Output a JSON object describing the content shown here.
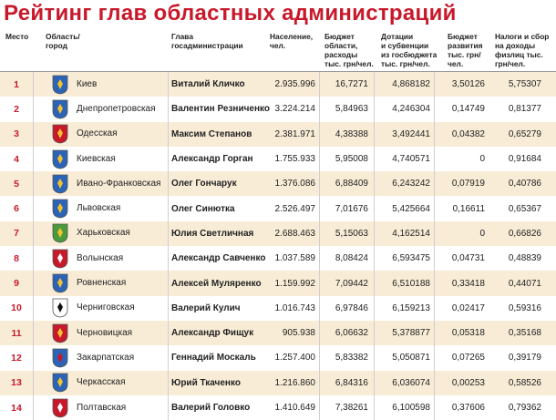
{
  "title": "Рейтинг глав областных администраций",
  "headers": {
    "rank": "Место",
    "region_l1": "Область/",
    "region_l2": "город",
    "gov_l1": "Глава",
    "gov_l2": "госадминистрации",
    "pop_l1": "Население,",
    "pop_l2": "чел.",
    "bud_l1": "Бюджет",
    "bud_l2": "области,",
    "bud_l3": "расходы",
    "bud_l4": "тыс. грн/чел.",
    "sub_l1": "Дотации",
    "sub_l2": "и субвенции",
    "sub_l3": "из госбюджета",
    "sub_l4": "тыс. грн/чел.",
    "dev_l1": "Бюджет",
    "dev_l2": "развития",
    "dev_l3": "тыс. грн/",
    "dev_l4": "чел.",
    "tax_l1": "Налоги и сбор",
    "tax_l2": "на доходы",
    "tax_l3": "физлиц тыс.",
    "tax_l4": "грн/чел."
  },
  "rows": [
    {
      "rank": "1",
      "region": "Киев",
      "governor": "Виталий Кличко",
      "population": "2.935.996",
      "budget": "16,7271",
      "subsidies": "4,868182",
      "development": "3,50126",
      "taxes": "5,75307",
      "emblem": "kyiv-city-emblem",
      "color": "#2b64b6",
      "accent": "#f2c12e"
    },
    {
      "rank": "2",
      "region": "Днепропетровская",
      "governor": "Валентин Резниченко",
      "population": "3.224.214",
      "budget": "5,84963",
      "subsidies": "4,246304",
      "development": "0,14749",
      "taxes": "0,81377",
      "emblem": "dnipro-emblem",
      "color": "#2b64b6",
      "accent": "#f2c12e"
    },
    {
      "rank": "3",
      "region": "Одесская",
      "governor": "Максим Степанов",
      "population": "2.381.971",
      "budget": "4,38388",
      "subsidies": "3,492441",
      "development": "0,04382",
      "taxes": "0,65279",
      "emblem": "odesa-emblem",
      "color": "#c8192b",
      "accent": "#f2c12e"
    },
    {
      "rank": "4",
      "region": "Киевская",
      "governor": "Александр Горган",
      "population": "1.755.933",
      "budget": "5,95008",
      "subsidies": "4,740571",
      "development": "0",
      "taxes": "0,91684",
      "emblem": "kyiv-oblast-emblem",
      "color": "#2b64b6",
      "accent": "#f2c12e"
    },
    {
      "rank": "5",
      "region": "Ивано-Франковская",
      "governor": "Олег Гончарук",
      "population": "1.376.086",
      "budget": "6,88409",
      "subsidies": "6,243242",
      "development": "0,07919",
      "taxes": "0,40786",
      "emblem": "ivano-frankivsk-emblem",
      "color": "#2b64b6",
      "accent": "#f2c12e"
    },
    {
      "rank": "6",
      "region": "Львовская",
      "governor": "Олег Синютка",
      "population": "2.526.497",
      "budget": "7,01676",
      "subsidies": "5,425664",
      "development": "0,16611",
      "taxes": "0,65367",
      "emblem": "lviv-emblem",
      "color": "#2b64b6",
      "accent": "#f2c12e"
    },
    {
      "rank": "7",
      "region": "Харьковская",
      "governor": "Юлия Светличная",
      "population": "2.688.463",
      "budget": "5,15063",
      "subsidies": "4,162514",
      "development": "0",
      "taxes": "0,66826",
      "emblem": "kharkiv-emblem",
      "color": "#4a9a3c",
      "accent": "#f2c12e"
    },
    {
      "rank": "8",
      "region": "Волынская",
      "governor": "Александр Савченко",
      "population": "1.037.589",
      "budget": "8,08424",
      "subsidies": "6,593475",
      "development": "0,04731",
      "taxes": "0,48839",
      "emblem": "volyn-emblem",
      "color": "#c8192b",
      "accent": "#ffffff"
    },
    {
      "rank": "9",
      "region": "Ровненская",
      "governor": "Алексей Муляренко",
      "population": "1.159.992",
      "budget": "7,09442",
      "subsidies": "6,510188",
      "development": "0,33418",
      "taxes": "0,44071",
      "emblem": "rivne-emblem",
      "color": "#2b64b6",
      "accent": "#f2c12e"
    },
    {
      "rank": "10",
      "region": "Черниговская",
      "governor": "Валерий Кулич",
      "population": "1.016.743",
      "budget": "6,97846",
      "subsidies": "6,159213",
      "development": "0,02417",
      "taxes": "0,59316",
      "emblem": "chernihiv-emblem",
      "color": "#ffffff",
      "accent": "#111111"
    },
    {
      "rank": "11",
      "region": "Черновицкая",
      "governor": "Александр Фищук",
      "population": "905.938",
      "budget": "6,06632",
      "subsidies": "5,378877",
      "development": "0,05318",
      "taxes": "0,35168",
      "emblem": "chernivtsi-emblem",
      "color": "#c8192b",
      "accent": "#f2c12e"
    },
    {
      "rank": "12",
      "region": "Закарпатская",
      "governor": "Геннадий Москаль",
      "population": "1.257.400",
      "budget": "5,83382",
      "subsidies": "5,050871",
      "development": "0,07265",
      "taxes": "0,39179",
      "emblem": "zakarpattia-emblem",
      "color": "#2b64b6",
      "accent": "#c8192b"
    },
    {
      "rank": "13",
      "region": "Черкасская",
      "governor": "Юрий Ткаченко",
      "population": "1.216.860",
      "budget": "6,84316",
      "subsidies": "6,036074",
      "development": "0,00253",
      "taxes": "0,58526",
      "emblem": "cherkasy-emblem",
      "color": "#2b64b6",
      "accent": "#f2c12e"
    },
    {
      "rank": "14",
      "region": "Полтавская",
      "governor": "Валерий Головко",
      "population": "1.410.649",
      "budget": "7,38261",
      "subsidies": "6,100598",
      "development": "0,37606",
      "taxes": "0,79362",
      "emblem": "poltava-emblem",
      "color": "#c8192b",
      "accent": "#ffffff"
    }
  ]
}
